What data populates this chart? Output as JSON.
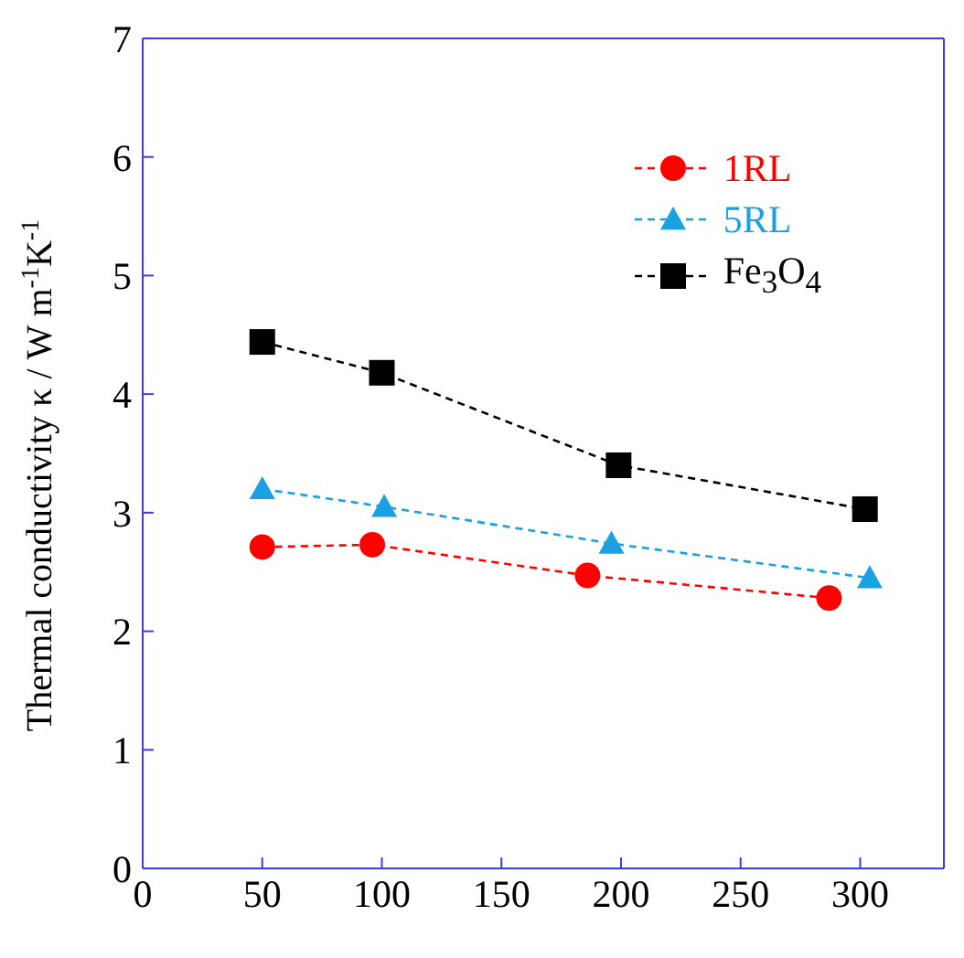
{
  "chart_data": {
    "type": "line",
    "ylabel": "Thermal conductivity κ  / W m$^{-1}$K$^{-1}$",
    "xlim": [
      0,
      335
    ],
    "xticks": [
      0,
      50,
      100,
      150,
      200,
      250,
      300
    ],
    "ylim": [
      0,
      7
    ],
    "yticks": [
      0,
      1,
      2,
      3,
      4,
      5,
      6,
      7
    ],
    "grid": false,
    "legend": "top right",
    "line_style": "dashed",
    "series": [
      {
        "name": "1RL",
        "color": "#ff0000",
        "marker": "circle",
        "x": [
          50,
          96,
          186,
          287
        ],
        "values": [
          2.71,
          2.73,
          2.47,
          2.28
        ]
      },
      {
        "name": "5RL",
        "color": "#1ba1e2",
        "marker": "triangle",
        "x": [
          50,
          101,
          196,
          304
        ],
        "values": [
          3.2,
          3.05,
          2.74,
          2.45
        ]
      },
      {
        "name": "Fe$_{3}$O$_{4}$",
        "color": "#000000",
        "marker": "square",
        "x": [
          50,
          100,
          199,
          302
        ],
        "values": [
          4.44,
          4.18,
          3.4,
          3.03
        ]
      }
    ]
  }
}
